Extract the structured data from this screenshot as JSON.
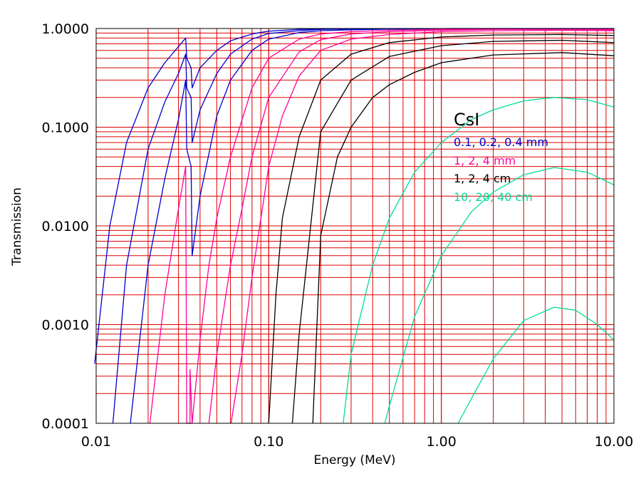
{
  "chart_data": {
    "type": "line",
    "title": "",
    "xlabel": "Energy (MeV)",
    "ylabel": "Transmission",
    "x_scale": "log",
    "y_scale": "log",
    "xlim": [
      0.01,
      10.0
    ],
    "ylim": [
      0.0001,
      1.0
    ],
    "grid": true,
    "grid_color": "#dd0000",
    "x_tick_labels": [
      "0.01",
      "0.10",
      "1.00",
      "10.00"
    ],
    "y_tick_labels": [
      "0.0001",
      "0.0010",
      "0.0100",
      "0.1000",
      "1.0000"
    ],
    "legend": {
      "title": "CsI",
      "placement": "right",
      "entries": [
        {
          "label": "0.1, 0.2, 0.4 mm",
          "color": "#0000cc"
        },
        {
          "label": "1, 2, 4 mm",
          "color": "#ff0099"
        },
        {
          "label": "1, 2, 4 cm",
          "color": "#000000"
        },
        {
          "label": "10, 20, 40 cm",
          "color": "#00dd99"
        }
      ]
    },
    "series": [
      {
        "group": 0,
        "color": "#0000cc",
        "x": [
          0.0098,
          0.012,
          0.015,
          0.02,
          0.025,
          0.033,
          0.0335,
          0.0355,
          0.036,
          0.04,
          0.05,
          0.06,
          0.08,
          0.1,
          0.15,
          0.2,
          0.3,
          0.5,
          1,
          2,
          5,
          10
        ],
        "y": [
          0.0004,
          0.01,
          0.07,
          0.25,
          0.45,
          0.8,
          0.5,
          0.4,
          0.25,
          0.4,
          0.6,
          0.75,
          0.88,
          0.94,
          0.98,
          0.99,
          0.995,
          0.998,
          0.999,
          1.0,
          1.0,
          1.0
        ]
      },
      {
        "group": 0,
        "color": "#0000cc",
        "x": [
          0.0125,
          0.015,
          0.02,
          0.025,
          0.03,
          0.033,
          0.0335,
          0.0355,
          0.036,
          0.04,
          0.05,
          0.06,
          0.08,
          0.1,
          0.15,
          0.2,
          0.3,
          0.5,
          1,
          2,
          5,
          10
        ],
        "y": [
          0.0001,
          0.004,
          0.06,
          0.18,
          0.35,
          0.55,
          0.25,
          0.2,
          0.07,
          0.15,
          0.35,
          0.55,
          0.78,
          0.89,
          0.95,
          0.98,
          0.99,
          0.995,
          0.998,
          0.999,
          0.999,
          0.999
        ]
      },
      {
        "group": 0,
        "color": "#0000cc",
        "x": [
          0.0158,
          0.02,
          0.025,
          0.03,
          0.033,
          0.0335,
          0.0355,
          0.036,
          0.04,
          0.05,
          0.06,
          0.08,
          0.1,
          0.15,
          0.2,
          0.3,
          0.5,
          1,
          2,
          5,
          10
        ],
        "y": [
          0.0001,
          0.004,
          0.03,
          0.12,
          0.3,
          0.06,
          0.04,
          0.005,
          0.02,
          0.13,
          0.3,
          0.6,
          0.78,
          0.91,
          0.95,
          0.97,
          0.985,
          0.99,
          0.995,
          0.995,
          0.99
        ]
      },
      {
        "group": 1,
        "color": "#ff0099",
        "x": [
          0.0205,
          0.025,
          0.03,
          0.033,
          0.0335,
          0.036,
          0.04,
          0.045,
          0.05,
          0.06,
          0.08,
          0.1,
          0.15,
          0.2,
          0.3,
          0.5,
          1,
          2,
          5,
          10
        ],
        "y": [
          0.0001,
          0.002,
          0.015,
          0.04,
          0.0001,
          0.0001,
          0.0007,
          0.004,
          0.012,
          0.05,
          0.25,
          0.5,
          0.78,
          0.88,
          0.93,
          0.96,
          0.98,
          0.99,
          0.99,
          0.99
        ]
      },
      {
        "group": 1,
        "color": "#ff0099",
        "x": [
          0.0335,
          0.035,
          0.035,
          0.036
        ],
        "y": [
          0.0001,
          0.0001,
          0.00035,
          0.0001
        ]
      },
      {
        "group": 1,
        "color": "#ff0099",
        "x": [
          0.045,
          0.05,
          0.06,
          0.07,
          0.08,
          0.1,
          0.15,
          0.2,
          0.3,
          0.5,
          1,
          2,
          5,
          10
        ],
        "y": [
          0.0001,
          0.0005,
          0.004,
          0.015,
          0.05,
          0.2,
          0.58,
          0.77,
          0.88,
          0.93,
          0.96,
          0.98,
          0.98,
          0.97
        ]
      },
      {
        "group": 1,
        "color": "#ff0099",
        "x": [
          0.0605,
          0.07,
          0.08,
          0.1,
          0.12,
          0.15,
          0.2,
          0.3,
          0.5,
          1,
          2,
          5,
          10
        ],
        "y": [
          0.0001,
          0.0005,
          0.003,
          0.04,
          0.13,
          0.33,
          0.6,
          0.78,
          0.87,
          0.93,
          0.95,
          0.96,
          0.95
        ]
      },
      {
        "group": 2,
        "color": "#000000",
        "x": [
          0.1,
          0.11,
          0.12,
          0.15,
          0.2,
          0.3,
          0.5,
          1,
          2,
          5,
          10
        ],
        "y": [
          0.0001,
          0.002,
          0.012,
          0.08,
          0.3,
          0.55,
          0.72,
          0.82,
          0.86,
          0.87,
          0.85
        ]
      },
      {
        "group": 2,
        "color": "#000000",
        "x": [
          0.137,
          0.15,
          0.2,
          0.3,
          0.5,
          1,
          2,
          5,
          10
        ],
        "y": [
          0.0001,
          0.0008,
          0.09,
          0.3,
          0.52,
          0.67,
          0.74,
          0.76,
          0.72
        ]
      },
      {
        "group": 2,
        "color": "#000000",
        "x": [
          0.18,
          0.2,
          0.25,
          0.3,
          0.4,
          0.5,
          0.7,
          1,
          2,
          5,
          10
        ],
        "y": [
          0.0001,
          0.008,
          0.05,
          0.1,
          0.2,
          0.27,
          0.36,
          0.45,
          0.54,
          0.57,
          0.53
        ]
      },
      {
        "group": 3,
        "color": "#00dd99",
        "x": [
          0.27,
          0.3,
          0.4,
          0.5,
          0.7,
          1,
          1.5,
          2,
          3,
          4.5,
          7,
          10
        ],
        "y": [
          0.0001,
          0.0005,
          0.004,
          0.012,
          0.035,
          0.07,
          0.12,
          0.15,
          0.185,
          0.2,
          0.19,
          0.16
        ]
      },
      {
        "group": 3,
        "color": "#00dd99",
        "x": [
          0.47,
          0.5,
          0.7,
          1,
          1.5,
          2,
          3,
          4.5,
          7,
          10
        ],
        "y": [
          0.0001,
          0.00015,
          0.0012,
          0.005,
          0.014,
          0.022,
          0.033,
          0.039,
          0.035,
          0.026
        ]
      },
      {
        "group": 3,
        "color": "#00dd99",
        "x": [
          1.25,
          1.5,
          2,
          3,
          4.5,
          6,
          8,
          10
        ],
        "y": [
          0.0001,
          0.00018,
          0.00045,
          0.0011,
          0.0015,
          0.0014,
          0.001,
          0.0007
        ]
      }
    ]
  }
}
